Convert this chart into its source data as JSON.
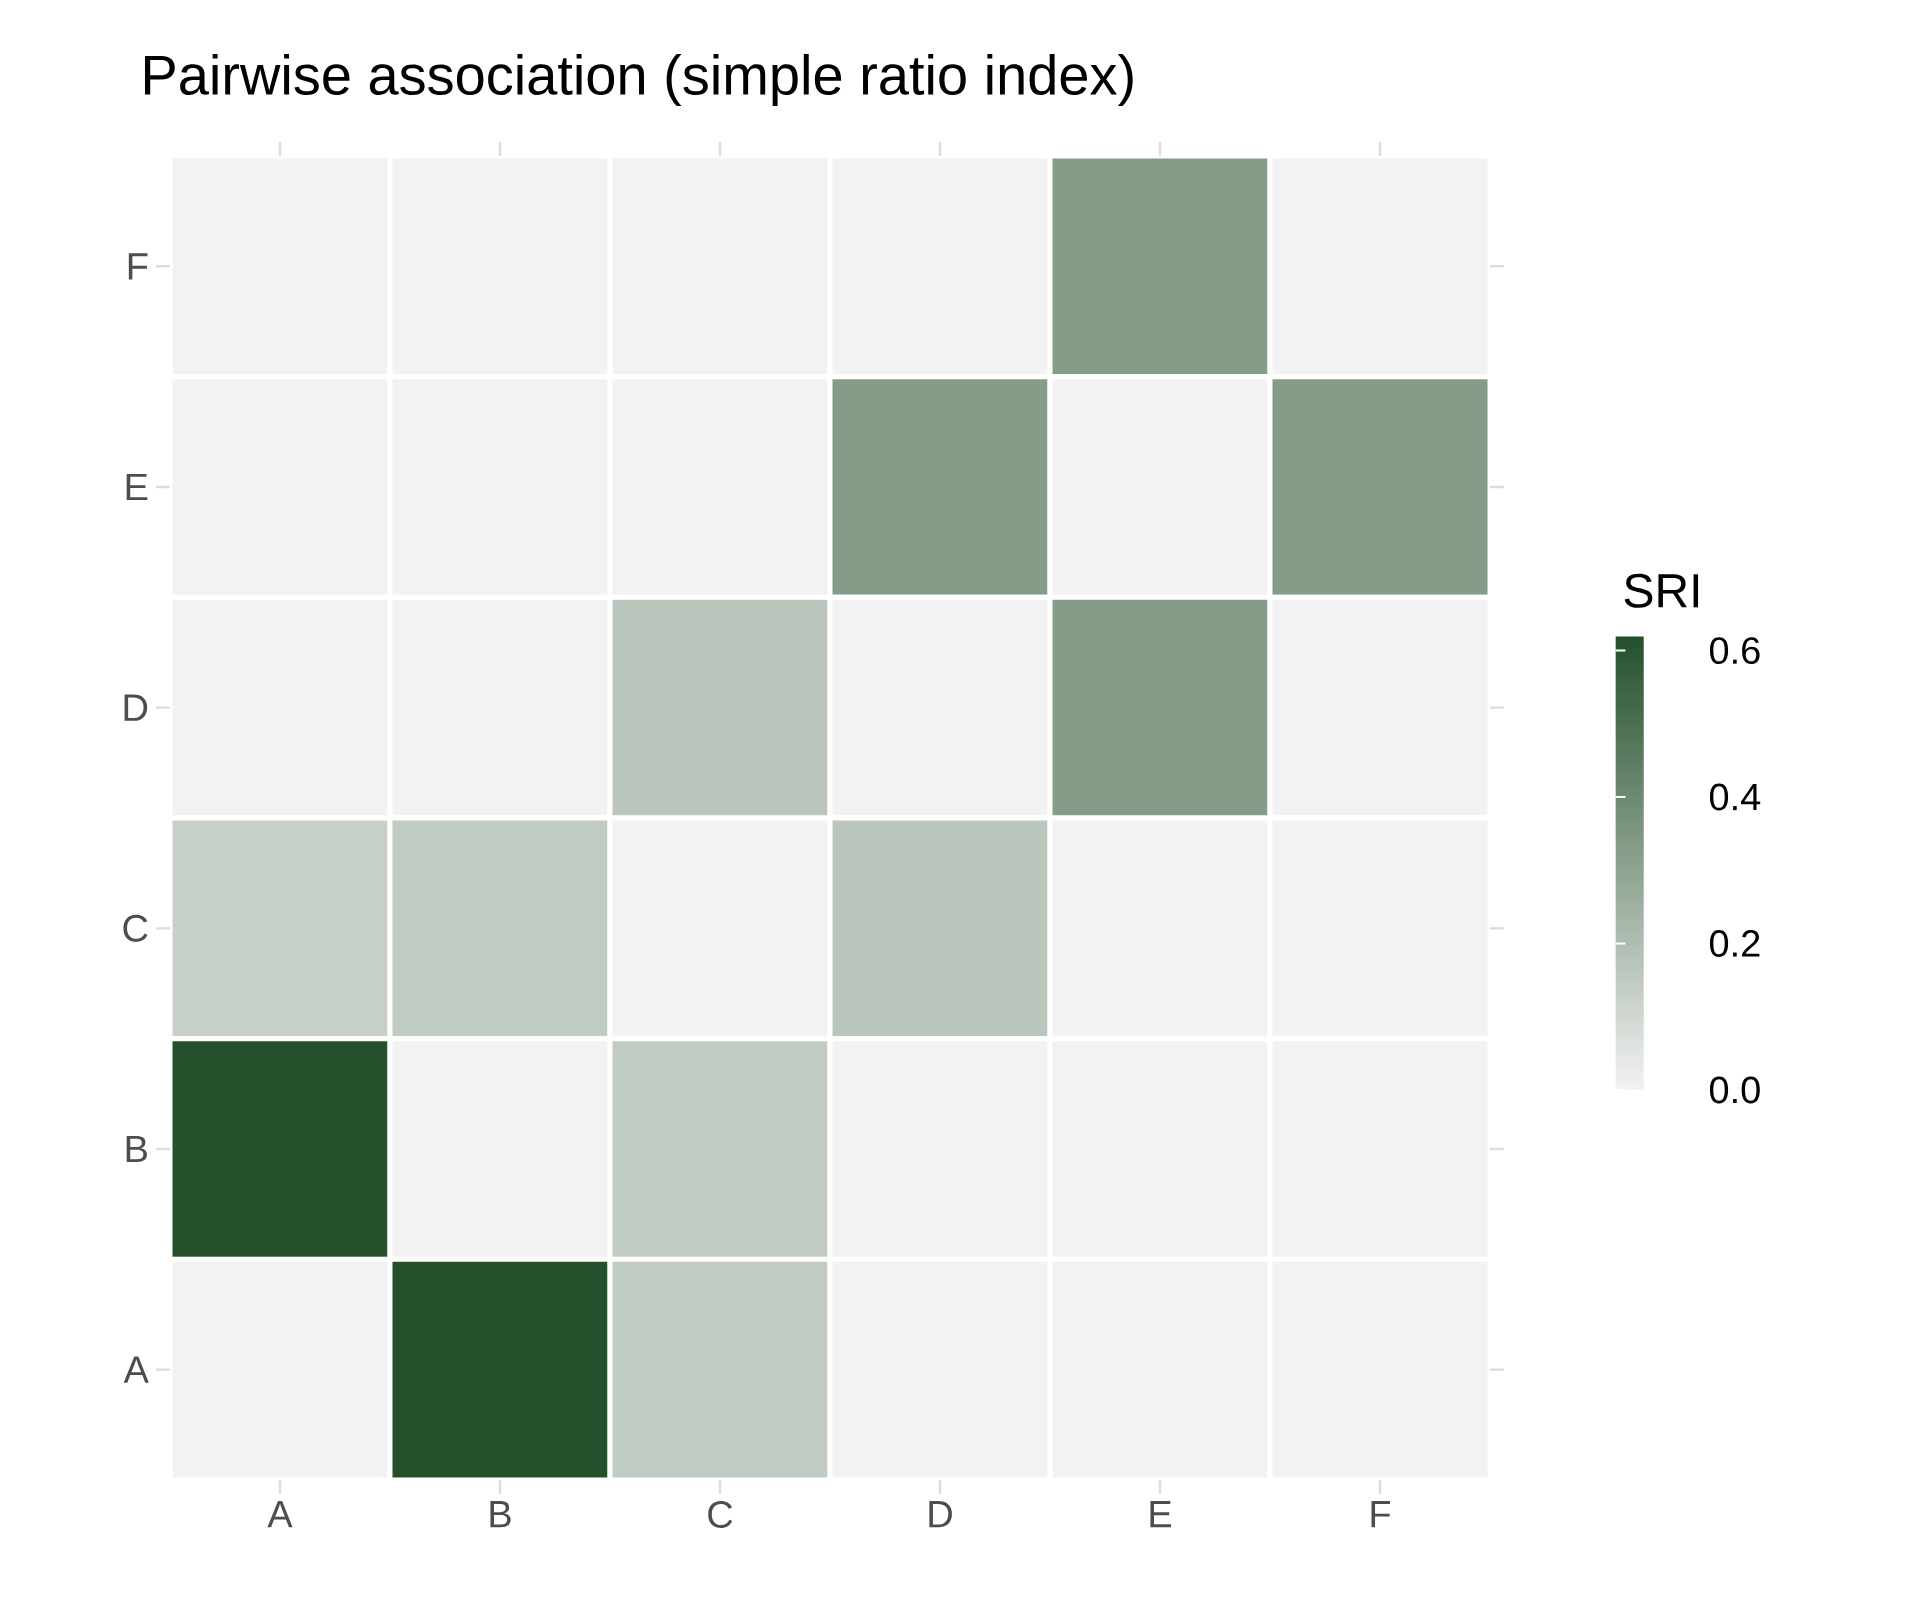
{
  "chart_data": {
    "type": "heatmap",
    "title": "Pairwise association (simple ratio index)",
    "clabel": "SRI",
    "categories": [
      "A",
      "B",
      "C",
      "D",
      "E",
      "F"
    ],
    "y_categories": [
      "F",
      "E",
      "D",
      "C",
      "B",
      "A"
    ],
    "cells": [
      [
        0,
        0,
        0,
        0,
        0.33,
        0
      ],
      [
        0,
        0,
        0,
        0.33,
        0,
        0.33
      ],
      [
        0,
        0,
        0.17,
        0,
        0.33,
        0
      ],
      [
        0.13,
        0.15,
        0,
        0.17,
        0,
        0
      ],
      [
        0.62,
        0,
        0.15,
        0,
        0,
        0
      ],
      [
        0,
        0.62,
        0.15,
        0,
        0,
        0
      ]
    ],
    "colors": [
      "#f2f2f2",
      "#24502b"
    ],
    "clim": [
      0,
      0.62
    ],
    "cticks": [
      {
        "value": 0,
        "label": "0.0"
      },
      {
        "value": 0.2,
        "label": "0.2"
      },
      {
        "value": 0.4,
        "label": "0.4"
      },
      {
        "value": 0.6,
        "label": "0.6"
      }
    ]
  }
}
